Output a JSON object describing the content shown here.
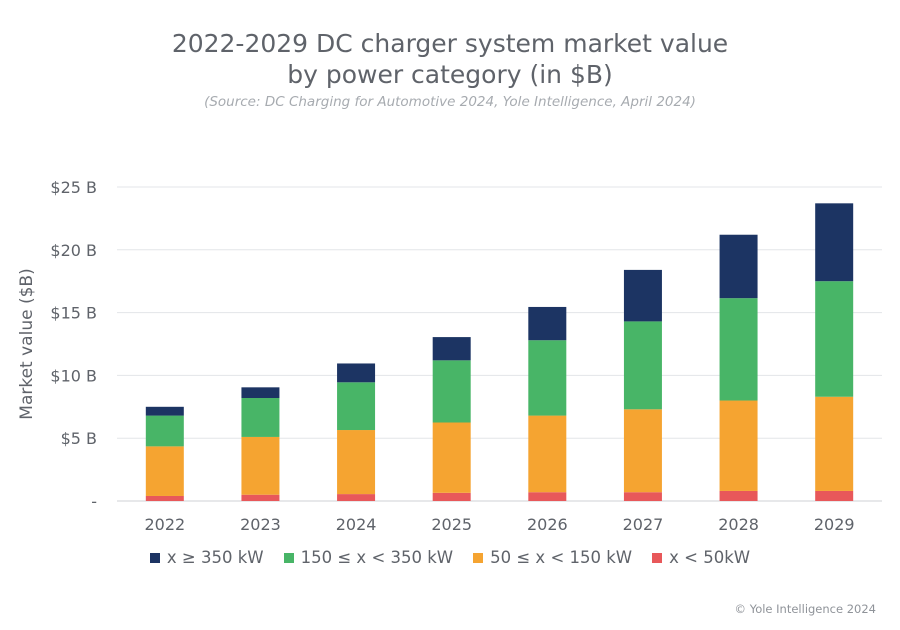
{
  "chart_data": {
    "type": "bar",
    "stacked": true,
    "title_line1": "2022-2029 DC charger system market value",
    "title_line2": "by power category (in $B)",
    "subtitle": "(Source: DC Charging for Automotive 2024, Yole Intelligence, April 2024)",
    "xlabel": "",
    "ylabel": "Market value ($B)",
    "ylim": [
      0,
      25
    ],
    "yticks": [
      {
        "value": 0,
        "label": "-"
      },
      {
        "value": 5,
        "label": "$5 B"
      },
      {
        "value": 10,
        "label": "$10 B"
      },
      {
        "value": 15,
        "label": "$15 B"
      },
      {
        "value": 20,
        "label": "$20 B"
      },
      {
        "value": 25,
        "label": "$25 B"
      }
    ],
    "grid": true,
    "legend_position": "bottom",
    "categories": [
      "2022",
      "2023",
      "2024",
      "2025",
      "2026",
      "2027",
      "2028",
      "2029"
    ],
    "series": [
      {
        "name": "x < 50kW",
        "color": "#e8585a",
        "values": [
          0.4,
          0.5,
          0.55,
          0.65,
          0.7,
          0.7,
          0.8,
          0.8
        ]
      },
      {
        "name": "50 ≤ x < 150 kW",
        "color": "#f5a431",
        "values": [
          3.95,
          4.6,
          5.1,
          5.6,
          6.1,
          6.6,
          7.2,
          7.5
        ]
      },
      {
        "name": "150 ≤ x < 350 kW",
        "color": "#48b567",
        "values": [
          2.45,
          3.1,
          3.8,
          4.95,
          6.0,
          7.0,
          8.15,
          9.2
        ]
      },
      {
        "name": "x ≥ 350 kW",
        "color": "#1c3463",
        "values": [
          0.7,
          0.85,
          1.5,
          1.85,
          2.65,
          4.1,
          5.05,
          6.2
        ]
      }
    ],
    "legend_order": [
      3,
      2,
      1,
      0
    ]
  },
  "footer": {
    "copyright": "© Yole Intelligence 2024"
  }
}
